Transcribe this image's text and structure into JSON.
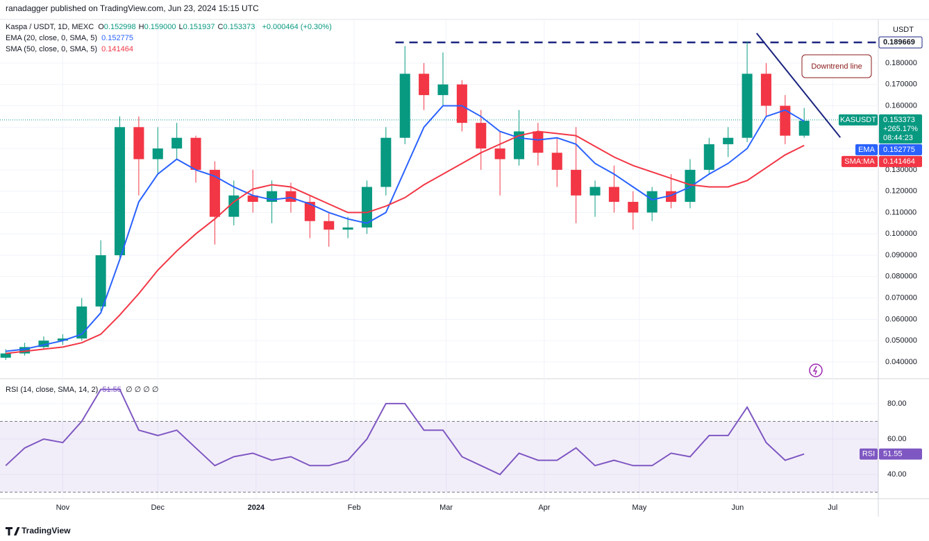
{
  "header": {
    "published": "ranadagger published on TradingView.com, Jun 23, 2024 15:15 UTC"
  },
  "legend": {
    "symbol": "Kaspa / USDT, 1D, MEXC",
    "ohlc": [
      {
        "label": "O",
        "value": "0.152998"
      },
      {
        "label": "H",
        "value": "0.159000"
      },
      {
        "label": "L",
        "value": "0.151937"
      },
      {
        "label": "C",
        "value": "0.153373"
      }
    ],
    "change": "+0.000464 (+0.30%)",
    "ema": {
      "label": "EMA (20, close, 0, SMA, 5)",
      "value": "0.152775"
    },
    "sma": {
      "label": "SMA (50, close, 0, SMA, 5)",
      "value": "0.141464"
    }
  },
  "axis_currency": "USDT",
  "badges": {
    "change": "+265.17%",
    "countdown": "08:44:23",
    "ema_value": "0.152775",
    "sma_value": "0.141464"
  },
  "chart_data": [
    {
      "type": "candlestick",
      "name": "KASUSDT",
      "open": [
        0.042,
        0.044,
        0.047,
        0.05,
        0.051,
        0.066,
        0.09,
        0.15,
        0.135,
        0.14,
        0.145,
        0.13,
        0.108,
        0.118,
        0.115,
        0.12,
        0.115,
        0.106,
        0.102,
        0.103,
        0.122,
        0.145,
        0.175,
        0.165,
        0.17,
        0.152,
        0.14,
        0.135,
        0.148,
        0.138,
        0.13,
        0.118,
        0.122,
        0.115,
        0.11,
        0.12,
        0.115,
        0.13,
        0.142,
        0.145,
        0.175,
        0.16,
        0.146
      ],
      "high": [
        0.046,
        0.049,
        0.052,
        0.053,
        0.07,
        0.097,
        0.155,
        0.155,
        0.15,
        0.152,
        0.146,
        0.134,
        0.125,
        0.13,
        0.125,
        0.124,
        0.118,
        0.11,
        0.108,
        0.125,
        0.15,
        0.188,
        0.18,
        0.185,
        0.172,
        0.158,
        0.148,
        0.158,
        0.152,
        0.145,
        0.15,
        0.125,
        0.132,
        0.12,
        0.122,
        0.128,
        0.135,
        0.145,
        0.15,
        0.19,
        0.18,
        0.165,
        0.159
      ],
      "low": [
        0.041,
        0.043,
        0.046,
        0.048,
        0.05,
        0.064,
        0.088,
        0.118,
        0.128,
        0.135,
        0.124,
        0.095,
        0.104,
        0.11,
        0.105,
        0.11,
        0.098,
        0.094,
        0.098,
        0.1,
        0.118,
        0.142,
        0.158,
        0.16,
        0.148,
        0.13,
        0.118,
        0.132,
        0.132,
        0.122,
        0.105,
        0.108,
        0.11,
        0.102,
        0.106,
        0.112,
        0.112,
        0.128,
        0.136,
        0.143,
        0.155,
        0.142,
        0.145
      ],
      "close": [
        0.044,
        0.047,
        0.05,
        0.051,
        0.066,
        0.09,
        0.15,
        0.135,
        0.14,
        0.145,
        0.13,
        0.108,
        0.118,
        0.115,
        0.12,
        0.115,
        0.106,
        0.102,
        0.103,
        0.122,
        0.145,
        0.175,
        0.165,
        0.17,
        0.152,
        0.14,
        0.135,
        0.148,
        0.138,
        0.13,
        0.118,
        0.122,
        0.115,
        0.11,
        0.12,
        0.115,
        0.13,
        0.142,
        0.145,
        0.175,
        0.16,
        0.146,
        0.153
      ],
      "up_color": "#089981",
      "down_color": "#f23645",
      "overlays": [
        {
          "name": "EMA",
          "color": "#2962ff",
          "values": [
            0.045,
            0.046,
            0.048,
            0.05,
            0.053,
            0.063,
            0.088,
            0.115,
            0.128,
            0.135,
            0.13,
            0.127,
            0.122,
            0.118,
            0.116,
            0.117,
            0.114,
            0.11,
            0.107,
            0.105,
            0.11,
            0.13,
            0.15,
            0.16,
            0.16,
            0.155,
            0.148,
            0.145,
            0.144,
            0.145,
            0.142,
            0.133,
            0.128,
            0.122,
            0.116,
            0.118,
            0.122,
            0.128,
            0.133,
            0.14,
            0.155,
            0.158,
            0.152775
          ]
        },
        {
          "name": "SMA:MA",
          "color": "#f23645",
          "values": [
            0.044,
            0.045,
            0.046,
            0.047,
            0.049,
            0.053,
            0.062,
            0.072,
            0.083,
            0.092,
            0.1,
            0.107,
            0.115,
            0.121,
            0.123,
            0.122,
            0.118,
            0.114,
            0.11,
            0.11,
            0.113,
            0.117,
            0.123,
            0.128,
            0.133,
            0.138,
            0.142,
            0.146,
            0.148,
            0.147,
            0.146,
            0.141,
            0.136,
            0.132,
            0.129,
            0.126,
            0.123,
            0.122,
            0.122,
            0.125,
            0.131,
            0.137,
            0.141464
          ]
        }
      ],
      "xlim": [
        -0.3,
        45.9
      ],
      "xticks": [
        {
          "value": 3.0,
          "label": "Nov"
        },
        {
          "value": 8.0,
          "label": "Dec"
        },
        {
          "value": 13.17,
          "label": "2024"
        },
        {
          "value": 18.33,
          "label": "Feb"
        },
        {
          "value": 23.17,
          "label": "Mar"
        },
        {
          "value": 28.33,
          "label": "Apr"
        },
        {
          "value": 33.33,
          "label": "May"
        },
        {
          "value": 38.5,
          "label": "Jun"
        },
        {
          "value": 43.5,
          "label": "Jul"
        }
      ],
      "ylim": [
        0.0325,
        0.1998
      ],
      "yticks": [
        {
          "value": 0.04,
          "label": "0.040000"
        },
        {
          "value": 0.05,
          "label": "0.050000"
        },
        {
          "value": 0.06,
          "label": "0.060000"
        },
        {
          "value": 0.07,
          "label": "0.070000"
        },
        {
          "value": 0.08,
          "label": "0.080000"
        },
        {
          "value": 0.09,
          "label": "0.090000"
        },
        {
          "value": 0.1,
          "label": "0.100000"
        },
        {
          "value": 0.11,
          "label": "0.110000"
        },
        {
          "value": 0.12,
          "label": "0.120000"
        },
        {
          "value": 0.13,
          "label": "0.130000"
        },
        {
          "value": 0.14,
          "label": "0.140000"
        },
        {
          "value": 0.15,
          "label": "0.150000"
        },
        {
          "value": 0.16,
          "label": "0.160000"
        },
        {
          "value": 0.17,
          "label": "0.170000"
        },
        {
          "value": 0.18,
          "label": "0.180000"
        }
      ],
      "resistance": {
        "value": 0.189669,
        "label": "0.189669",
        "start": 20.5
      },
      "last_price": {
        "value": 0.153373,
        "label": "0.153373"
      },
      "trendline": {
        "x": [
          39.5,
          43.9
        ],
        "y": [
          0.194,
          0.1452
        ]
      },
      "annotation": "Downtrend line"
    },
    {
      "type": "line",
      "title": "RSI (14, close, SMA, 14, 2)",
      "value_label": "51.55",
      "extra": "∅ ∅ ∅ ∅",
      "series": [
        {
          "name": "RSI",
          "color": "#7e57c2",
          "values": [
            45,
            55,
            60,
            58,
            70,
            88,
            88,
            65,
            62,
            65,
            55,
            45,
            50,
            52,
            48,
            50,
            45,
            45,
            48,
            60,
            80,
            80,
            65,
            65,
            50,
            45,
            40,
            52,
            48,
            48,
            55,
            45,
            48,
            45,
            45,
            52,
            50,
            62,
            62,
            78,
            58,
            48,
            51.55
          ]
        }
      ],
      "ylim": [
        26.7,
        93.3
      ],
      "yticks": [
        {
          "value": 80,
          "label": "80.00"
        },
        {
          "value": 60,
          "label": "60.00"
        },
        {
          "value": 40,
          "label": "40.00"
        }
      ],
      "bands": [
        30,
        70
      ]
    }
  ],
  "footer": {
    "brand": "TradingView"
  }
}
